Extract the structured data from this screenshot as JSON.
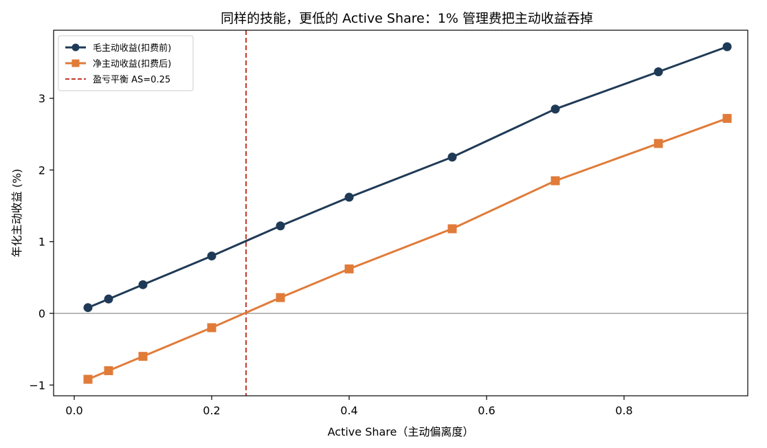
{
  "chart_data": {
    "type": "line",
    "title": "同样的技能，更低的 Active Share：1% 管理费把主动收益吞掉",
    "xlabel": "Active Share（主动偏离度）",
    "ylabel": "年化主动收益 (%)",
    "xlim": [
      -0.03,
      0.98
    ],
    "ylim": [
      -1.15,
      3.95
    ],
    "xticks": [
      0.0,
      0.2,
      0.4,
      0.6,
      0.8
    ],
    "xtick_labels": [
      "0.0",
      "0.2",
      "0.4",
      "0.6",
      "0.8"
    ],
    "yticks": [
      -1,
      0,
      1,
      2,
      3
    ],
    "ytick_labels": [
      "−1",
      "0",
      "1",
      "2",
      "3"
    ],
    "grid": false,
    "legend_position": "top-left",
    "x": [
      0.02,
      0.05,
      0.1,
      0.2,
      0.3,
      0.4,
      0.55,
      0.7,
      0.85,
      0.95
    ],
    "series": [
      {
        "name": "毛主动收益(扣费前)",
        "values": [
          0.08,
          0.2,
          0.4,
          0.8,
          1.22,
          1.62,
          2.18,
          2.85,
          3.37,
          3.72
        ],
        "color": "#1f3a56",
        "marker": "circle"
      },
      {
        "name": "净主动收益(扣费后)",
        "values": [
          -0.92,
          -0.8,
          -0.6,
          -0.2,
          0.22,
          0.62,
          1.18,
          1.85,
          2.37,
          2.72
        ],
        "color": "#e07b39",
        "marker": "square"
      }
    ],
    "reference_lines": [
      {
        "name": "盈亏平衡 AS=0.25",
        "orientation": "vertical",
        "value": 0.25,
        "color": "#c0392b",
        "style": "dashed"
      },
      {
        "orientation": "horizontal",
        "value": 0,
        "color": "#808080",
        "style": "solid"
      }
    ]
  }
}
